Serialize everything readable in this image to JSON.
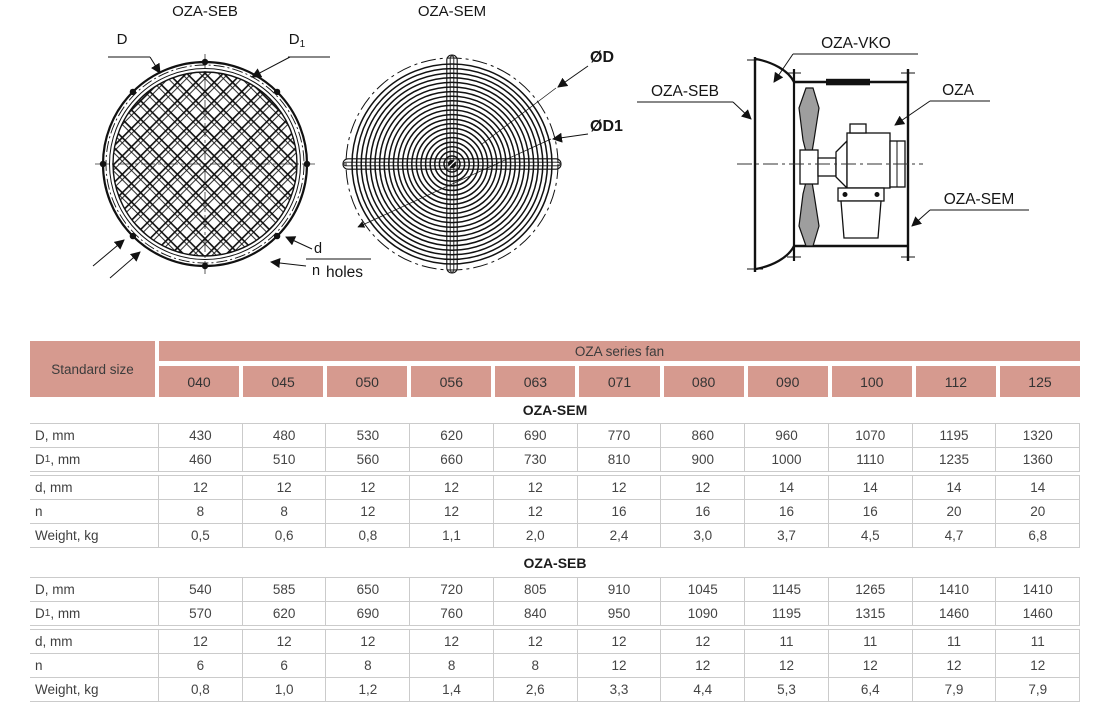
{
  "colors": {
    "header_bg": "#d69a8f",
    "table_border": "#cbcbcb",
    "blade_fill": "#9e9e9e"
  },
  "drawings": {
    "guard_seb": {
      "title": "OZA-SEB",
      "dim_d": "D",
      "dim_d1_base": "D",
      "dim_d1_sub": "1",
      "holes_top": "d",
      "holes_bottom": "n",
      "holes_word": "holes"
    },
    "guard_sem": {
      "title": "OZA-SEM",
      "dim_od": "ØD",
      "dim_od1": "ØD1"
    },
    "side_view": {
      "label_vko": "OZA-VKO",
      "label_seb": "OZA-SEB",
      "label_oza": "OZA",
      "label_sem": "OZA-SEM"
    }
  },
  "table": {
    "corner": "Standard size",
    "series_header": "OZA series fan",
    "sizes": [
      "040",
      "045",
      "050",
      "056",
      "063",
      "071",
      "080",
      "090",
      "100",
      "112",
      "125"
    ],
    "sections": [
      {
        "title": "OZA-SEM",
        "rows": [
          {
            "base": "D",
            "sub": "",
            "rest": ", mm",
            "values": [
              "430",
              "480",
              "530",
              "620",
              "690",
              "770",
              "860",
              "960",
              "1070",
              "1195",
              "1320"
            ]
          },
          {
            "base": "D",
            "sub": "1",
            "rest": ", mm",
            "values": [
              "460",
              "510",
              "560",
              "660",
              "730",
              "810",
              "900",
              "1000",
              "1110",
              "1235",
              "1360"
            ]
          },
          {
            "base": "d",
            "sub": "",
            "rest": ", mm",
            "values": [
              "12",
              "12",
              "12",
              "12",
              "12",
              "12",
              "12",
              "14",
              "14",
              "14",
              "14"
            ]
          },
          {
            "base": "n",
            "sub": "",
            "rest": "",
            "values": [
              "8",
              "8",
              "12",
              "12",
              "12",
              "16",
              "16",
              "16",
              "16",
              "20",
              "20"
            ]
          },
          {
            "base": "Weight",
            "sub": "",
            "rest": ", kg",
            "values": [
              "0,5",
              "0,6",
              "0,8",
              "1,1",
              "2,0",
              "2,4",
              "3,0",
              "3,7",
              "4,5",
              "4,7",
              "6,8"
            ]
          }
        ]
      },
      {
        "title": "OZA-SEB",
        "rows": [
          {
            "base": "D",
            "sub": "",
            "rest": ", mm",
            "values": [
              "540",
              "585",
              "650",
              "720",
              "805",
              "910",
              "1045",
              "1145",
              "1265",
              "1410",
              "1410"
            ]
          },
          {
            "base": "D",
            "sub": "1",
            "rest": ", mm",
            "values": [
              "570",
              "620",
              "690",
              "760",
              "840",
              "950",
              "1090",
              "1195",
              "1315",
              "1460",
              "1460"
            ]
          },
          {
            "base": "d",
            "sub": "",
            "rest": ", mm",
            "values": [
              "12",
              "12",
              "12",
              "12",
              "12",
              "12",
              "12",
              "11",
              "11",
              "11",
              "11"
            ]
          },
          {
            "base": "n",
            "sub": "",
            "rest": "",
            "values": [
              "6",
              "6",
              "8",
              "8",
              "8",
              "12",
              "12",
              "12",
              "12",
              "12",
              "12"
            ]
          },
          {
            "base": "Weight",
            "sub": "",
            "rest": ", kg",
            "values": [
              "0,8",
              "1,0",
              "1,2",
              "1,4",
              "2,6",
              "3,3",
              "4,4",
              "5,3",
              "6,4",
              "7,9",
              "7,9"
            ]
          }
        ]
      }
    ]
  }
}
